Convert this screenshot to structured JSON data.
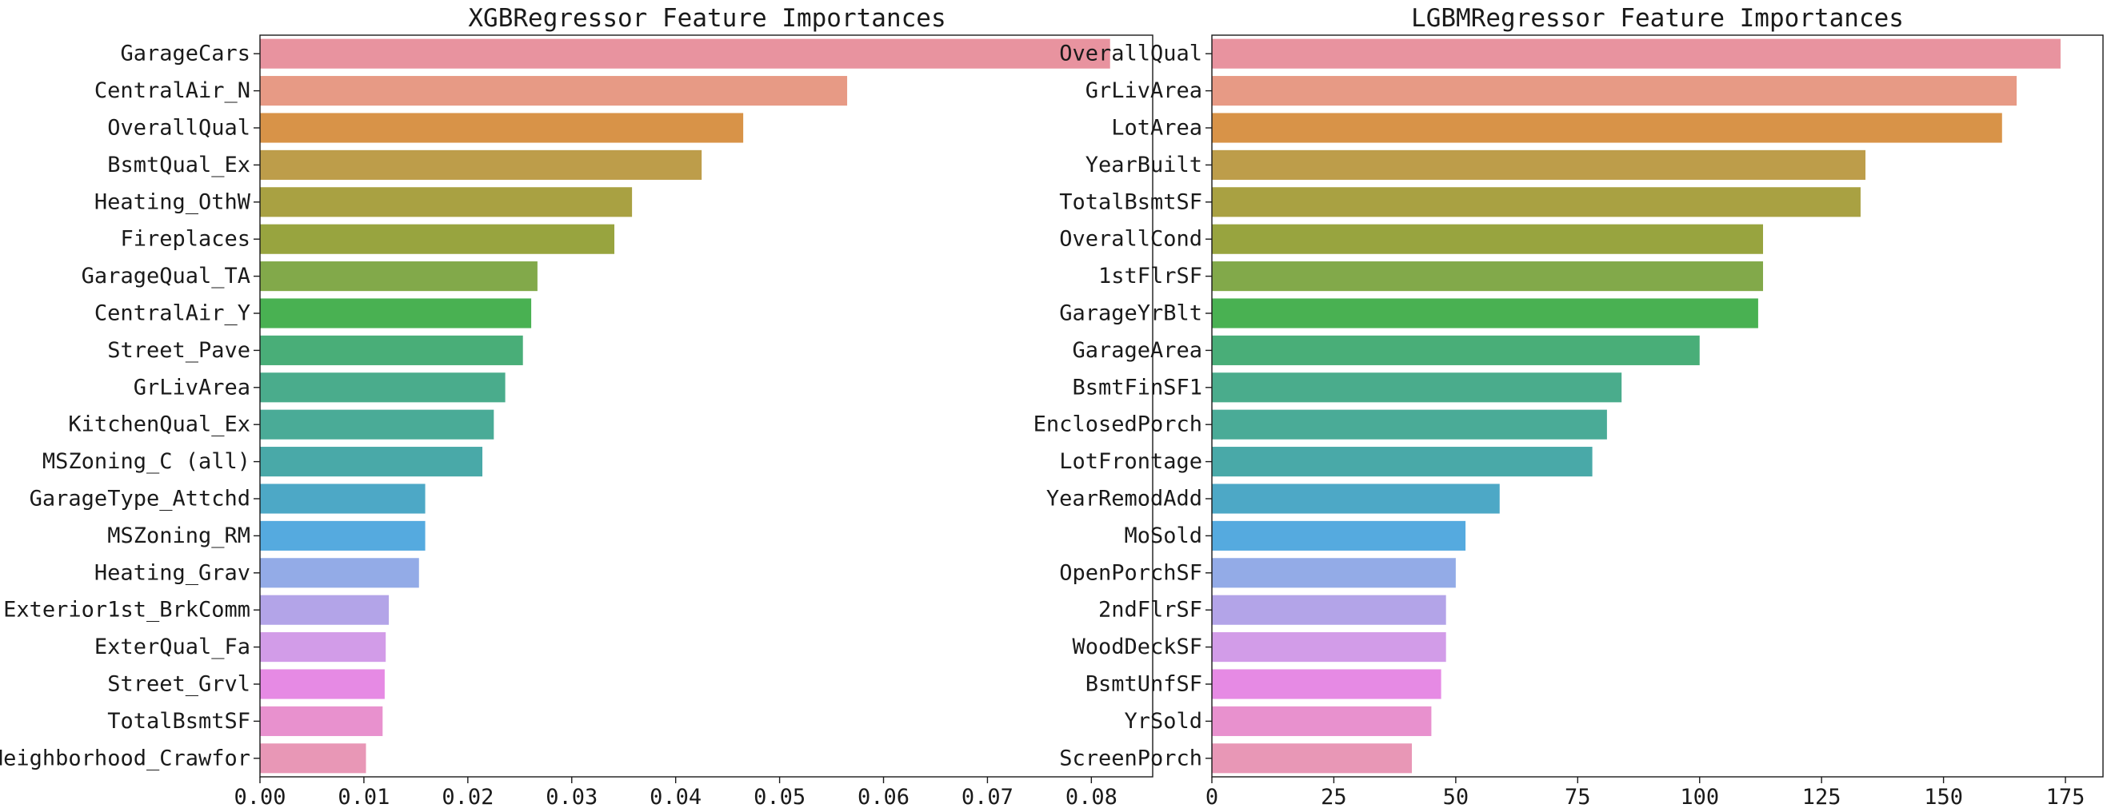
{
  "chart_data": [
    {
      "type": "bar",
      "orientation": "horizontal",
      "title": "XGBRegressor Feature Importances",
      "xlabel": "",
      "ylabel": "",
      "grid": false,
      "xlim": [
        0,
        0.0859
      ],
      "xticks": [
        0,
        0.01,
        0.02,
        0.03,
        0.04,
        0.05,
        0.06,
        0.07,
        0.08
      ],
      "xtick_labels": [
        "0.00",
        "0.01",
        "0.02",
        "0.03",
        "0.04",
        "0.05",
        "0.06",
        "0.07",
        "0.08"
      ],
      "categories": [
        "GarageCars",
        "CentralAir_N",
        "OverallQual",
        "BsmtQual_Ex",
        "Heating_OthW",
        "Fireplaces",
        "GarageQual_TA",
        "CentralAir_Y",
        "Street_Pave",
        "GrLivArea",
        "KitchenQual_Ex",
        "MSZoning_C (all)",
        "GarageType_Attchd",
        "MSZoning_RM",
        "Heating_Grav",
        "Exterior1st_BrkComm",
        "ExterQual_Fa",
        "Street_Grvl",
        "TotalBsmtSF",
        "Neighborhood_Crawfor"
      ],
      "values": [
        0.0818,
        0.0565,
        0.0465,
        0.0425,
        0.0358,
        0.0341,
        0.0267,
        0.0261,
        0.0253,
        0.0236,
        0.0225,
        0.0214,
        0.0159,
        0.0159,
        0.0153,
        0.0124,
        0.0121,
        0.012,
        0.0118,
        0.0102
      ],
      "colors": [
        "#e8939f",
        "#e79a85",
        "#d89348",
        "#bd9d4a",
        "#a9a142",
        "#98a43f",
        "#82a94a",
        "#49b152",
        "#49ae78",
        "#4aac8c",
        "#4aab97",
        "#49a9a8",
        "#4da8c6",
        "#55aadf",
        "#93abe7",
        "#b3a4e8",
        "#d29ce8",
        "#e68ae4",
        "#e891ce",
        "#e897b6"
      ]
    },
    {
      "type": "bar",
      "orientation": "horizontal",
      "title": "LGBMRegressor Feature Importances",
      "xlabel": "",
      "ylabel": "",
      "grid": false,
      "xlim": [
        0,
        182.7
      ],
      "xticks": [
        0,
        25,
        50,
        75,
        100,
        125,
        150,
        175
      ],
      "xtick_labels": [
        "0",
        "25",
        "50",
        "75",
        "100",
        "125",
        "150",
        "175"
      ],
      "categories": [
        "OverallQual",
        "GrLivArea",
        "LotArea",
        "YearBuilt",
        "TotalBsmtSF",
        "OverallCond",
        "1stFlrSF",
        "GarageYrBlt",
        "GarageArea",
        "BsmtFinSF1",
        "EnclosedPorch",
        "LotFrontage",
        "YearRemodAdd",
        "MoSold",
        "OpenPorchSF",
        "2ndFlrSF",
        "WoodDeckSF",
        "BsmtUnfSF",
        "YrSold",
        "ScreenPorch"
      ],
      "values": [
        174,
        165,
        162,
        134,
        133,
        113,
        113,
        112,
        100,
        84,
        81,
        78,
        59,
        52,
        50,
        48,
        48,
        47,
        45,
        41
      ],
      "colors": [
        "#e8939f",
        "#e79a85",
        "#d89348",
        "#bd9d4a",
        "#a9a142",
        "#98a43f",
        "#82a94a",
        "#49b152",
        "#49ae78",
        "#4aac8c",
        "#4aab97",
        "#49a9a8",
        "#4da8c6",
        "#55aadf",
        "#93abe7",
        "#b3a4e8",
        "#d29ce8",
        "#e68ae4",
        "#e891ce",
        "#e897b6"
      ]
    }
  ]
}
